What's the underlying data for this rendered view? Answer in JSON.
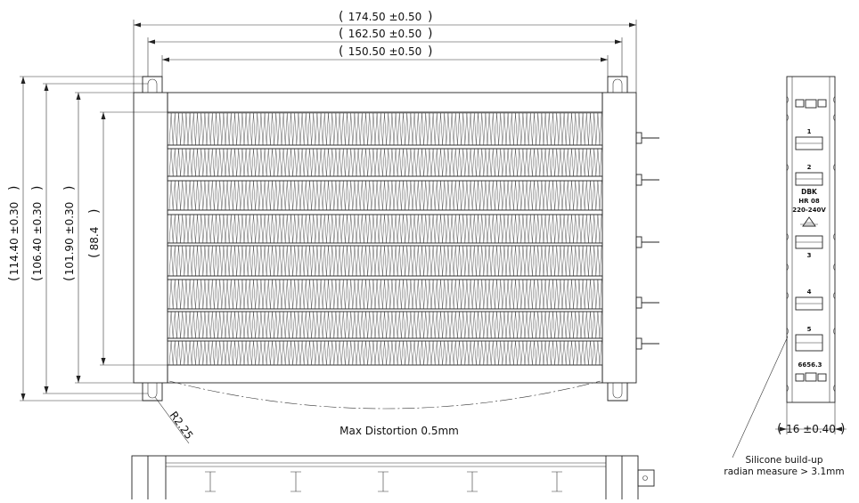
{
  "dimensions": {
    "width_overall": "174.50 ±0.50",
    "width_mid": "162.50 ±0.50",
    "width_inner": "150.50 ±0.50",
    "height_overall": "114.40 ±0.30",
    "height_mid": "106.40 ±0.30",
    "height_inner": "101.90 ±0.30",
    "height_fins": "88.4",
    "radius": "R2.25",
    "side_width": "16 ±0.40"
  },
  "notes": {
    "distortion": "Max Distortion 0.5mm",
    "silicone_line1": "Silicone build-up",
    "silicone_line2": "radian measure > 3.1mm"
  },
  "side_view": {
    "labels": [
      "1",
      "2",
      "3",
      "4",
      "5"
    ],
    "marking_line1": "DBK",
    "marking_line2": "HR 08",
    "marking_line3": "220-240V",
    "part_number": "6656.3"
  }
}
